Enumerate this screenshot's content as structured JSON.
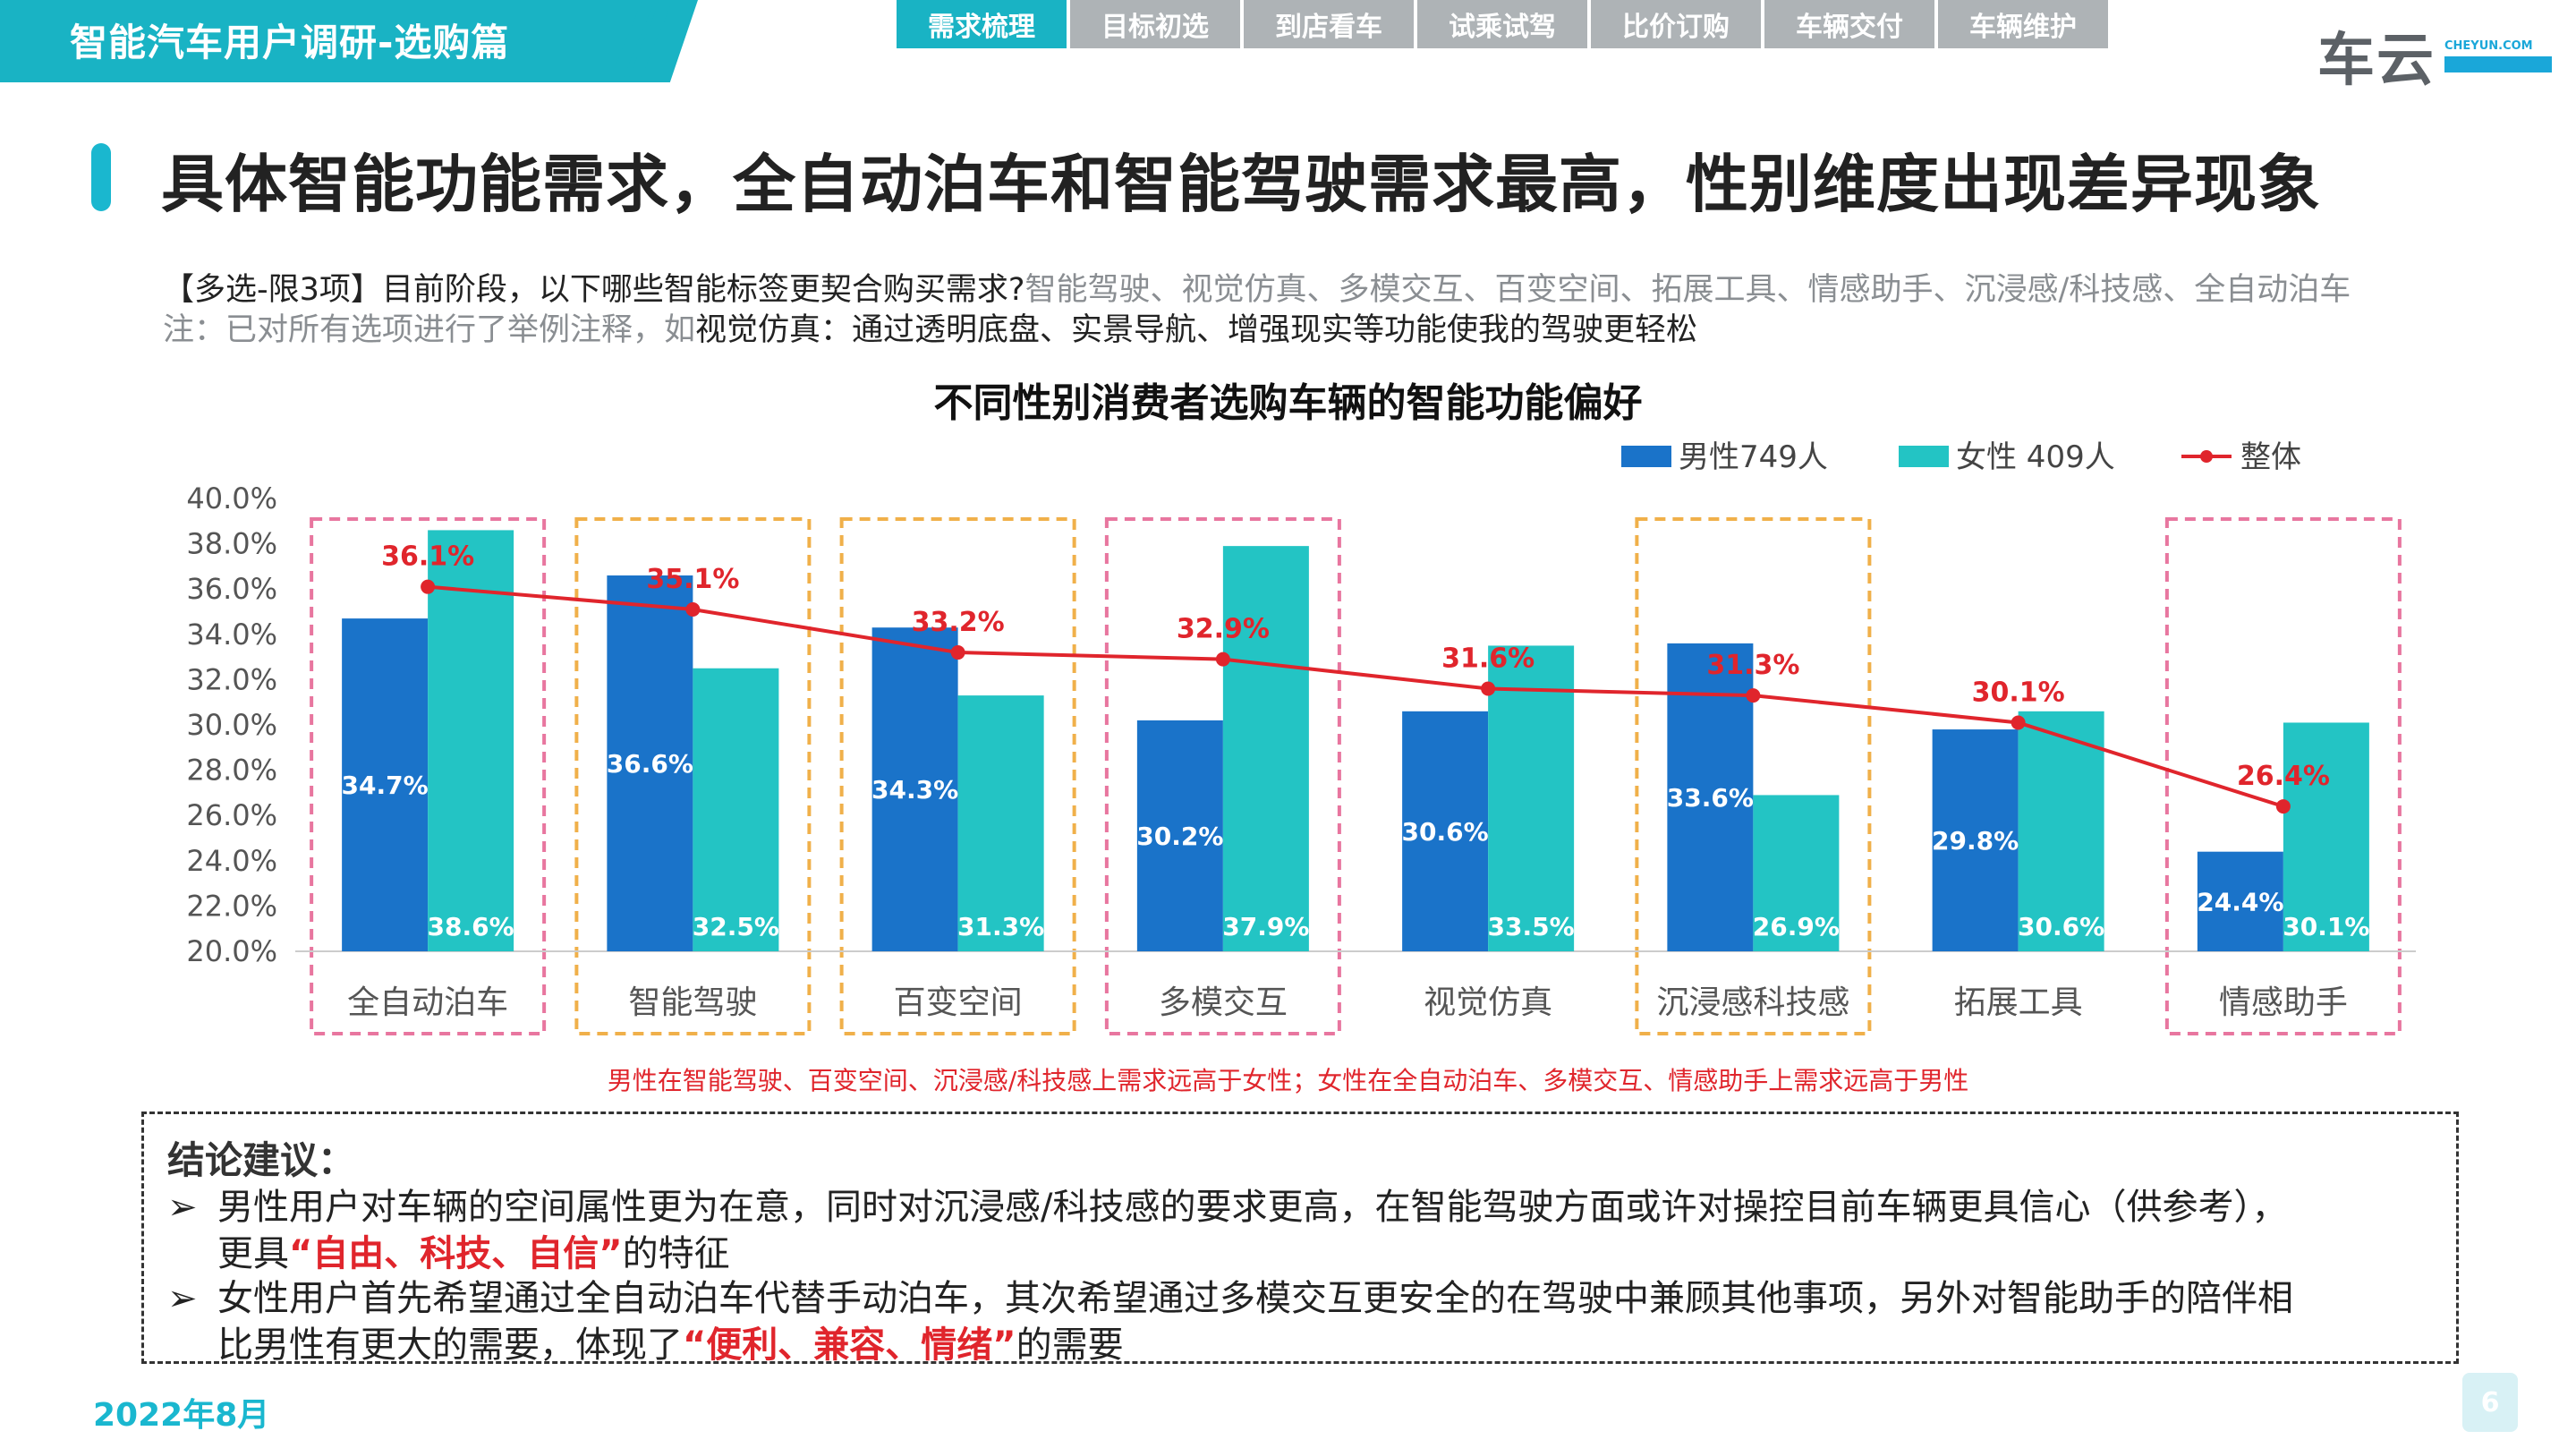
{
  "header": {
    "banner_title": "智能汽车用户调研-选购篇",
    "nav_tabs": [
      "需求梳理",
      "目标初选",
      "到店看车",
      "试乘试驾",
      "比价订购",
      "车辆交付",
      "车辆维护"
    ],
    "active_tab": 0,
    "logo_text": "车云",
    "logo_domain": "CHEYUN.COM"
  },
  "headline": "具体智能功能需求，全自动泊车和智能驾驶需求最高，性别维度出现差异现象",
  "question": {
    "prefix": "【多选-限3项】目前阶段，以下哪些智能标签更契合购买需求?",
    "options": "智能驾驶、视觉仿真、多模交互、百变空间、拓展工具、情感助手、沉浸感/科技感、全自动泊车"
  },
  "note": {
    "prefix": "注：已对所有选项进行了举例注释，如",
    "text": "视觉仿真：通过透明底盘、实景导航、增强现实等功能使我的驾驶更轻松"
  },
  "chart_data": {
    "type": "bar",
    "title": "不同性别消费者选购车辆的智能功能偏好",
    "categories": [
      "全自动泊车",
      "智能驾驶",
      "百变空间",
      "多模交互",
      "视觉仿真",
      "沉浸感科技感",
      "拓展工具",
      "情感助手"
    ],
    "series": [
      {
        "name": "男性749人",
        "type": "bar",
        "color": "#1a73c9",
        "values": [
          34.7,
          36.6,
          34.3,
          30.2,
          30.6,
          33.6,
          29.8,
          24.4
        ]
      },
      {
        "name": "女性 409人",
        "type": "bar",
        "color": "#23c4c4",
        "values": [
          38.6,
          32.5,
          31.3,
          37.9,
          33.5,
          26.9,
          30.6,
          30.1
        ]
      },
      {
        "name": "整体",
        "type": "line",
        "color": "#e0252c",
        "values": [
          36.1,
          35.1,
          33.2,
          32.9,
          31.6,
          31.3,
          30.1,
          26.4
        ]
      }
    ],
    "ylim": [
      20,
      40
    ],
    "yticks": [
      "20.0%",
      "22.0%",
      "24.0%",
      "26.0%",
      "28.0%",
      "30.0%",
      "32.0%",
      "34.0%",
      "36.0%",
      "38.0%",
      "40.0%"
    ],
    "unit": "%",
    "legend_position": "top-right",
    "highlight_boxes": [
      {
        "category": "全自动泊车",
        "style": "pink-dashed"
      },
      {
        "category": "智能驾驶",
        "style": "orange-dashed"
      },
      {
        "category": "百变空间",
        "style": "orange-dashed"
      },
      {
        "category": "多模交互",
        "style": "pink-dashed"
      },
      {
        "category": "沉浸感科技感",
        "style": "orange-dashed"
      },
      {
        "category": "情感助手",
        "style": "pink-dashed"
      }
    ],
    "colors": {
      "pink_box": "#e8769f",
      "orange_box": "#f0b04a"
    }
  },
  "footnote": "男性在智能驾驶、百变空间、沉浸感/科技感上需求远高于女性；女性在全自动泊车、多模交互、情感助手上需求远高于男性",
  "conclusion": {
    "title": "结论建议：",
    "arrow": "➢",
    "item1_a": "男性用户对车辆的空间属性更为在意，同时对沉浸感/科技感的要求更高，在智能驾驶方面或许对操控目前车辆更具信心（供参考），",
    "item1_b": "更具",
    "item1_hl": "“自由、科技、自信”",
    "item1_c": "的特征",
    "item2_a": "女性用户首先希望通过全自动泊车代替手动泊车，其次希望通过多模交互更安全的在驾驶中兼顾其他事项，另外对智能助手的陪伴相",
    "item2_b": "比男性有更大的需要，体现了",
    "item2_hl": "“便利、兼容、情绪”",
    "item2_c": "的需要"
  },
  "footer": {
    "date": "2022年8月",
    "page": "6"
  }
}
